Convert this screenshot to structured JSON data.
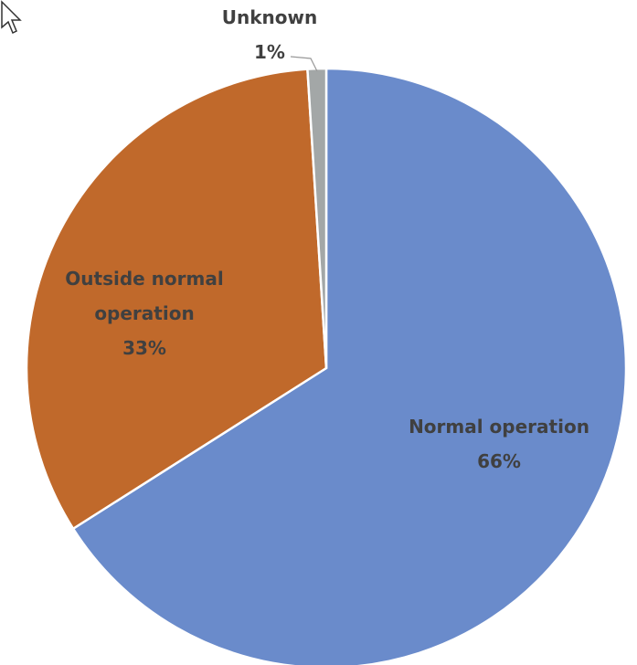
{
  "chart_data": {
    "type": "pie",
    "categories": [
      "Normal operation",
      "Outside normal operation",
      "Unknown"
    ],
    "values": [
      66,
      33,
      1
    ],
    "value_labels": [
      "66%",
      "33%",
      "1%"
    ],
    "colors": [
      "#6a8bcb",
      "#c0692b",
      "#a3a7a7"
    ]
  }
}
